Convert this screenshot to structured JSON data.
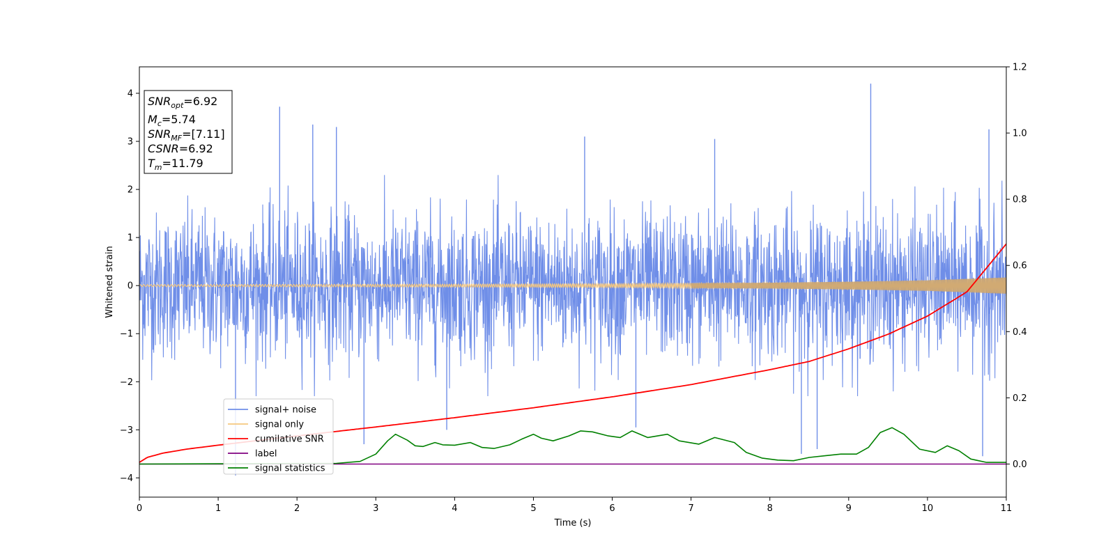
{
  "chart_data": {
    "type": "line",
    "xlabel": "Time (s)",
    "ylabel": "Whitened strain",
    "xlim": [
      0,
      11
    ],
    "ylim_left": [
      -4.4,
      4.55
    ],
    "ylim_right": [
      -0.1,
      1.2
    ],
    "x_ticks": [
      0,
      1,
      2,
      3,
      4,
      5,
      6,
      7,
      8,
      9,
      10,
      11
    ],
    "y_ticks_left": [
      -4,
      -3,
      -2,
      -1,
      0,
      1,
      2,
      3,
      4
    ],
    "y_ticks_right": [
      0.0,
      0.2,
      0.4,
      0.6,
      0.8,
      1.0,
      1.2
    ],
    "x_tick_labels": [
      "0",
      "1",
      "2",
      "3",
      "4",
      "5",
      "6",
      "7",
      "8",
      "9",
      "10",
      "11"
    ],
    "y_tick_labels_left": [
      "−4",
      "−3",
      "−2",
      "−1",
      "0",
      "1",
      "2",
      "3",
      "4"
    ],
    "y_tick_labels_right": [
      "0.0",
      "0.2",
      "0.4",
      "0.6",
      "0.8",
      "1.0",
      "1.2"
    ],
    "info_box": [
      {
        "name": "SNR",
        "sub": "opt",
        "value": "=6.92"
      },
      {
        "name": "M",
        "sub": "c",
        "value": "=5.74"
      },
      {
        "name": "SNR",
        "sub": "MF",
        "value": "=[7.11]"
      },
      {
        "name": "CSNR",
        "sub": "",
        "value": "=6.92"
      },
      {
        "name": "T",
        "sub": "m",
        "value": "=11.79"
      }
    ],
    "legend": {
      "location": "lower-left",
      "entries": [
        {
          "label": "signal+ noise",
          "color": "#6f8ee8"
        },
        {
          "label": "signal only",
          "color": "#f5c77e"
        },
        {
          "label": "cumilative SNR",
          "color": "#ff0000"
        },
        {
          "label": "label",
          "color": "#800080"
        },
        {
          "label": "signal statistics",
          "color": "#008000"
        }
      ]
    },
    "series": [
      {
        "name": "signal+ noise",
        "axis": "left",
        "color": "#6f8ee8",
        "description": "band of noise, typical amplitude about ±1.9, spikes up to about 4.2 at x≈9.28 and down to about −3.95 at x≈1.22",
        "typical_range": [
          -1.9,
          1.9
        ],
        "spikes": [
          {
            "x": 1.22,
            "y": -3.95
          },
          {
            "x": 1.78,
            "y": 3.72
          },
          {
            "x": 2.2,
            "y": 3.35
          },
          {
            "x": 2.5,
            "y": 3.3
          },
          {
            "x": 2.85,
            "y": -3.3
          },
          {
            "x": 3.9,
            "y": -3.0
          },
          {
            "x": 5.65,
            "y": 3.1
          },
          {
            "x": 6.3,
            "y": -2.95
          },
          {
            "x": 7.3,
            "y": 3.05
          },
          {
            "x": 8.4,
            "y": -3.5
          },
          {
            "x": 8.6,
            "y": -3.4
          },
          {
            "x": 9.28,
            "y": 4.2
          },
          {
            "x": 10.7,
            "y": -3.55
          },
          {
            "x": 10.78,
            "y": 3.25
          }
        ]
      },
      {
        "name": "signal only",
        "axis": "left",
        "color": "#f5c77e",
        "description": "chirp oscillation with amplitude growing in time",
        "envelope": {
          "x": [
            0,
            2,
            4,
            6,
            8,
            9,
            10,
            11
          ],
          "amplitude": [
            0.02,
            0.025,
            0.03,
            0.04,
            0.06,
            0.08,
            0.11,
            0.17
          ]
        }
      },
      {
        "name": "cumilative SNR",
        "axis": "right",
        "color": "#ff0000",
        "x": [
          0,
          0.1,
          0.3,
          0.6,
          1,
          1.5,
          2,
          3,
          4,
          5,
          6,
          7,
          8,
          8.5,
          9,
          9.5,
          10,
          10.5,
          11
        ],
        "y": [
          0.005,
          0.02,
          0.033,
          0.045,
          0.057,
          0.071,
          0.085,
          0.112,
          0.14,
          0.17,
          0.203,
          0.24,
          0.285,
          0.31,
          0.348,
          0.392,
          0.447,
          0.52,
          0.665
        ]
      },
      {
        "name": "label",
        "axis": "right",
        "color": "#800080",
        "x": [
          0,
          11
        ],
        "y": [
          0.0,
          0.0
        ]
      },
      {
        "name": "signal statistics",
        "axis": "right",
        "color": "#008000",
        "x": [
          0,
          2.5,
          2.8,
          3.0,
          3.15,
          3.25,
          3.4,
          3.5,
          3.6,
          3.75,
          3.85,
          4.0,
          4.2,
          4.35,
          4.5,
          4.7,
          4.85,
          5.0,
          5.1,
          5.25,
          5.45,
          5.6,
          5.75,
          5.95,
          6.1,
          6.25,
          6.45,
          6.7,
          6.85,
          7.1,
          7.3,
          7.55,
          7.7,
          7.9,
          8.1,
          8.3,
          8.5,
          8.7,
          8.9,
          9.1,
          9.25,
          9.4,
          9.55,
          9.7,
          9.9,
          10.1,
          10.25,
          10.4,
          10.55,
          10.75,
          11
        ],
        "y": [
          0.0,
          0.002,
          0.008,
          0.03,
          0.07,
          0.09,
          0.072,
          0.055,
          0.053,
          0.065,
          0.058,
          0.057,
          0.065,
          0.05,
          0.047,
          0.058,
          0.075,
          0.09,
          0.078,
          0.07,
          0.085,
          0.1,
          0.097,
          0.085,
          0.08,
          0.1,
          0.08,
          0.09,
          0.07,
          0.06,
          0.08,
          0.065,
          0.035,
          0.018,
          0.012,
          0.01,
          0.02,
          0.025,
          0.03,
          0.03,
          0.05,
          0.095,
          0.11,
          0.09,
          0.045,
          0.035,
          0.055,
          0.04,
          0.015,
          0.005,
          0.005
        ]
      }
    ]
  }
}
